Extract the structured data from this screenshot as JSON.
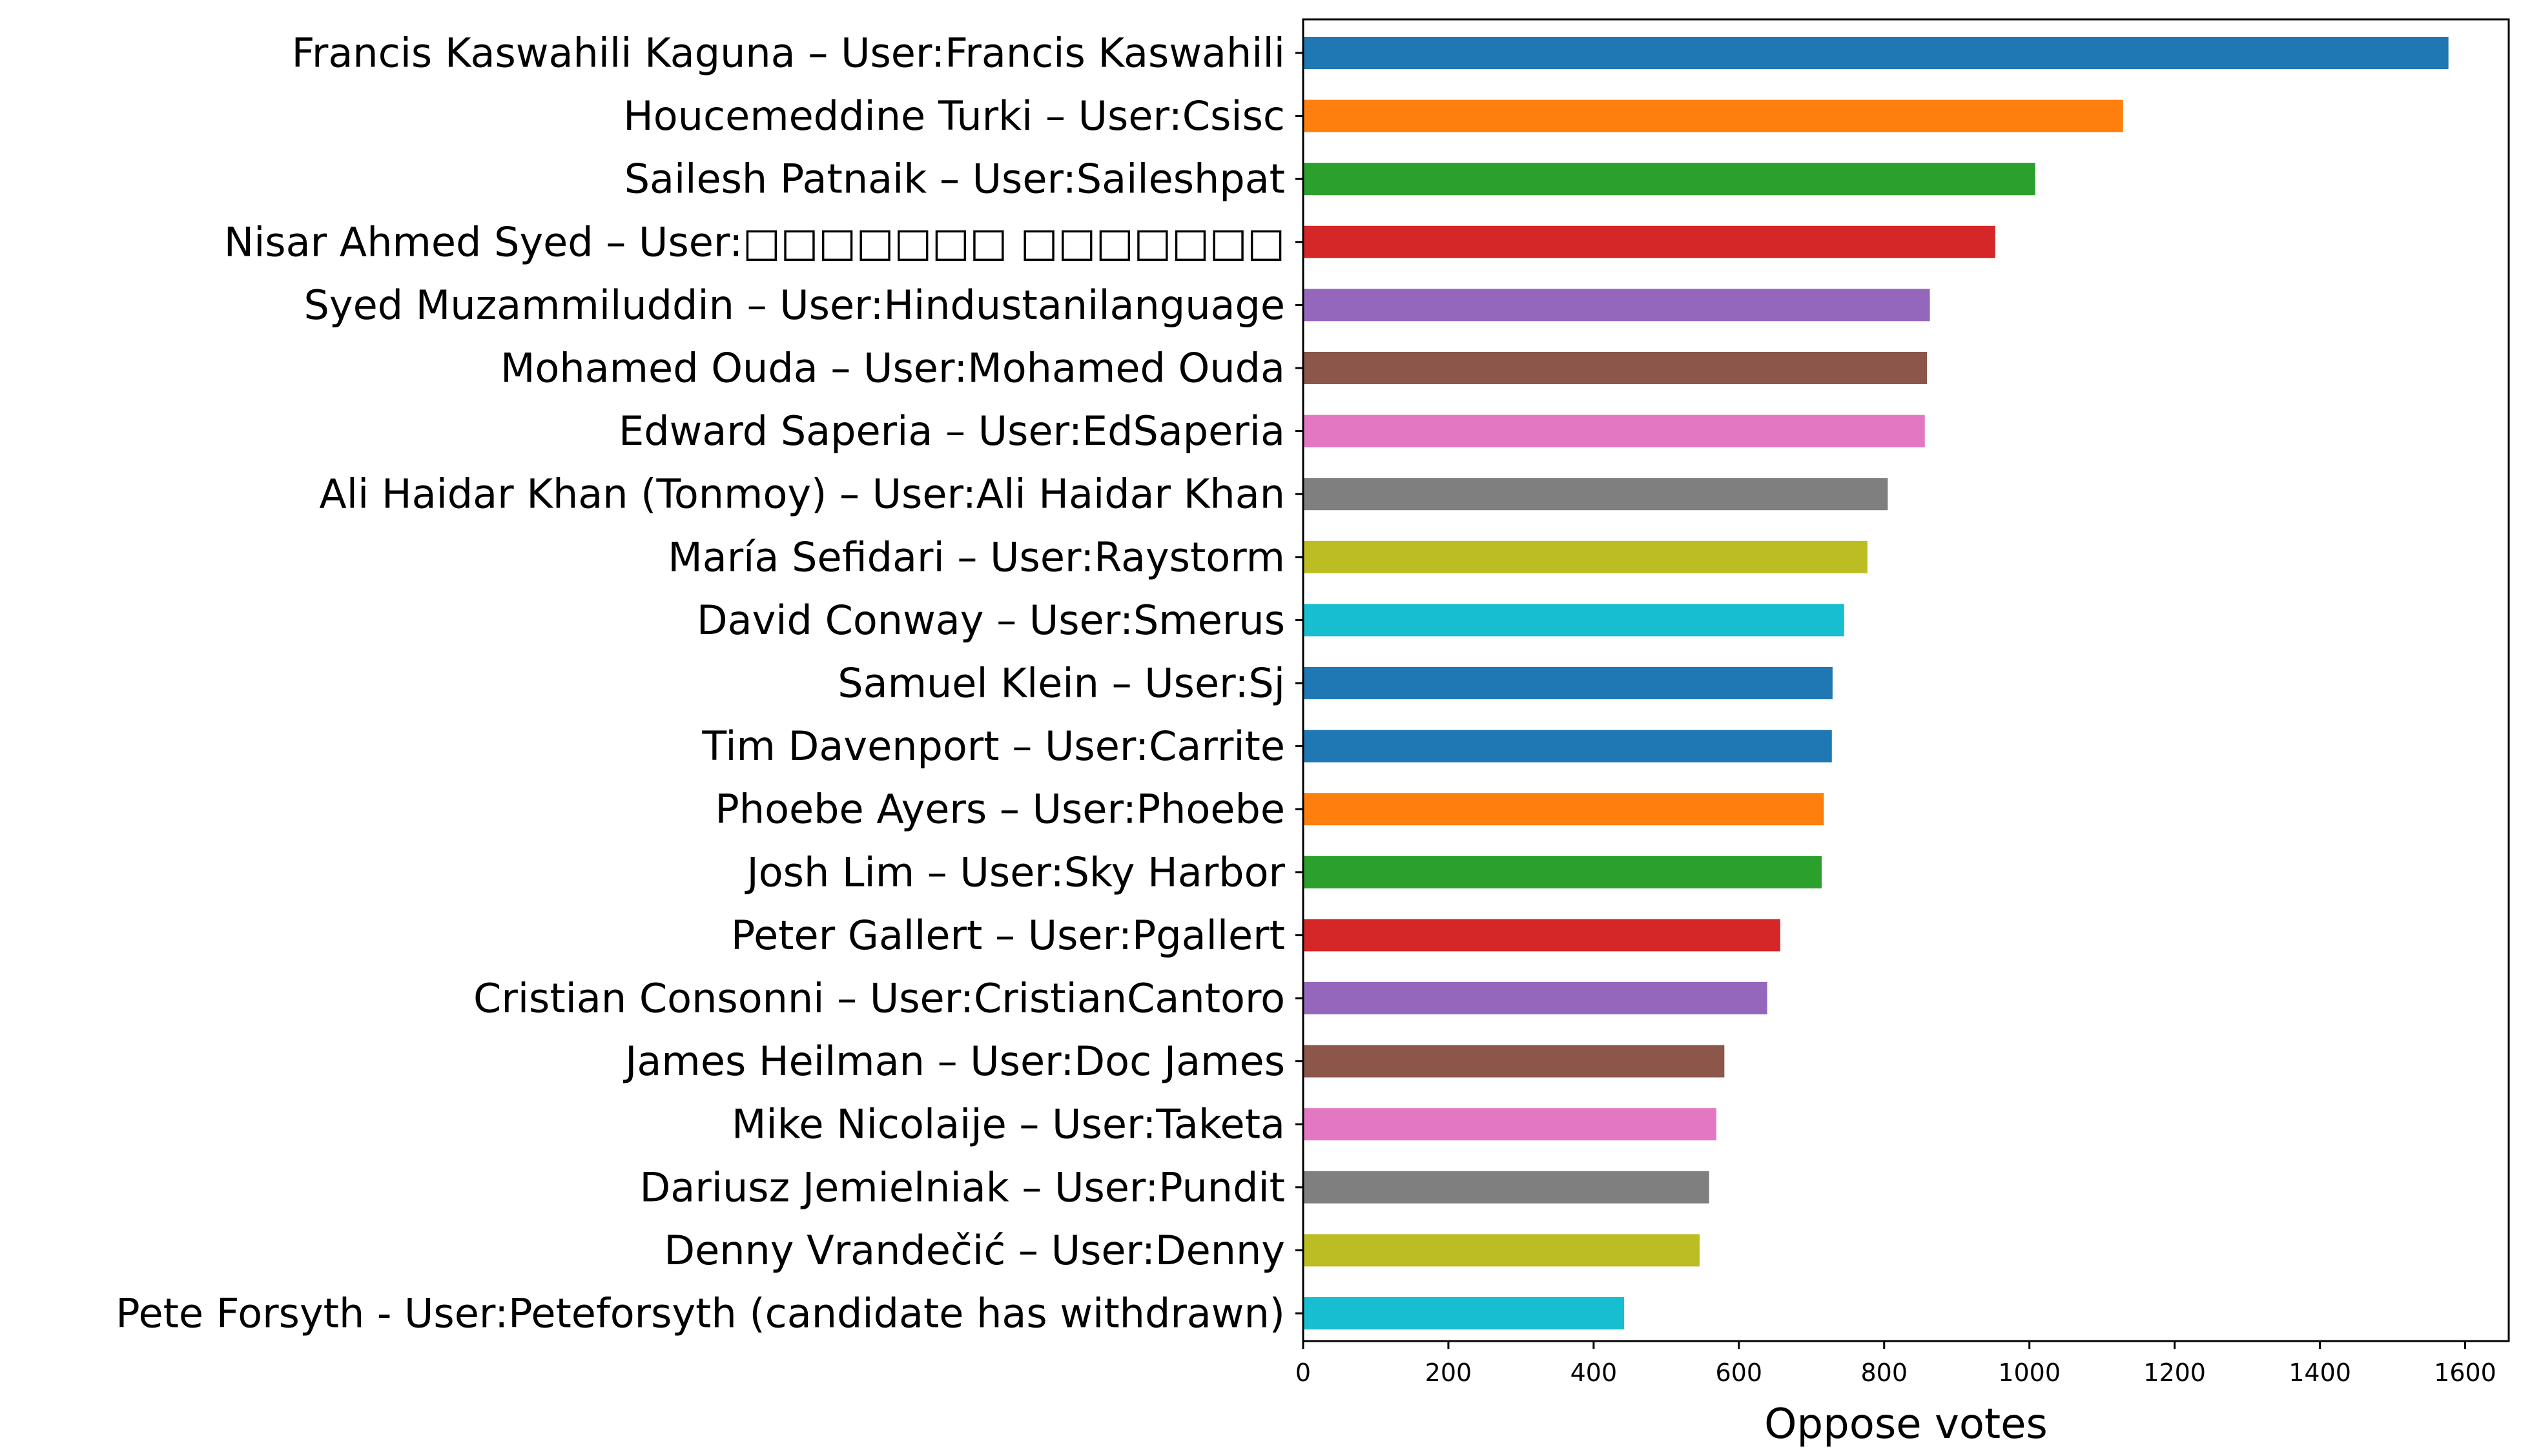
{
  "chart_data": {
    "type": "bar",
    "orientation": "horizontal",
    "title": "",
    "xlabel": "Oppose votes",
    "ylabel": "",
    "xlim": [
      0,
      1660
    ],
    "xticks": [
      0,
      200,
      400,
      600,
      800,
      1000,
      1200,
      1400,
      1600
    ],
    "grid": false,
    "legend": "none",
    "categories": [
      "Francis Kaswahili Kaguna – User:Francis Kaswahili",
      "Houcemeddine Turki – User:Csisc",
      "Sailesh Patnaik – User:Saileshpat",
      "Nisar Ahmed Syed – User:□□□□□□□ □□□□□□□",
      "Syed Muzammiluddin – User:Hindustanilanguage",
      "Mohamed Ouda – User:Mohamed Ouda",
      "Edward Saperia – User:EdSaperia",
      "Ali Haidar Khan (Tonmoy) – User:Ali Haidar Khan",
      "María Sefidari – User:Raystorm",
      "David Conway – User:Smerus",
      "Samuel Klein – User:Sj",
      "Tim Davenport – User:Carrite",
      "Phoebe Ayers – User:Phoebe",
      "Josh Lim – User:Sky Harbor",
      "Peter Gallert – User:Pgallert",
      "Cristian Consonni – User:CristianCantoro",
      "James Heilman – User:Doc James",
      "Mike Nicolaije – User:Taketa",
      "Dariusz Jemielniak – User:Pundit",
      "Denny Vrandečić – User:Denny",
      "Pete Forsyth - User:Peteforsyth (candidate has withdrawn)"
    ],
    "values": [
      1577,
      1129,
      1008,
      953,
      863,
      859,
      856,
      805,
      777,
      745,
      729,
      728,
      717,
      714,
      657,
      639,
      580,
      569,
      559,
      546,
      442
    ],
    "colors": [
      "#1f77b4",
      "#ff7f0e",
      "#2ca02c",
      "#d62728",
      "#9467bd",
      "#8c564b",
      "#e377c2",
      "#7f7f7f",
      "#bcbd22",
      "#17becf",
      "#1f77b4",
      "#1f77b4",
      "#ff7f0e",
      "#2ca02c",
      "#d62728",
      "#9467bd",
      "#8c564b",
      "#e377c2",
      "#7f7f7f",
      "#bcbd22",
      "#17becf"
    ]
  }
}
